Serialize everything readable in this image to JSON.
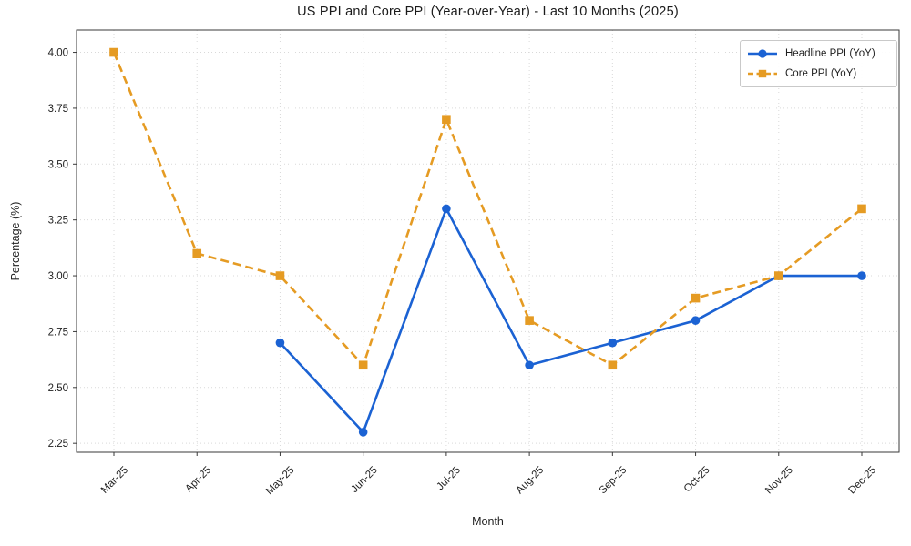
{
  "chart_data": {
    "type": "line",
    "title": "US PPI and Core PPI (Year-over-Year) - Last 10 Months (2025)",
    "xlabel": "Month",
    "ylabel": "Percentage (%)",
    "categories": [
      "Mar-25",
      "Apr-25",
      "May-25",
      "Jun-25",
      "Jul-25",
      "Aug-25",
      "Sep-25",
      "Oct-25",
      "Nov-25",
      "Dec-25"
    ],
    "series": [
      {
        "name": "Headline PPI (YoY)",
        "color": "#1b62d3",
        "line_style": "solid",
        "marker": "circle",
        "values": [
          null,
          null,
          2.7,
          2.3,
          3.3,
          2.6,
          2.7,
          2.8,
          3.0,
          3.0
        ]
      },
      {
        "name": "Core PPI (YoY)",
        "color": "#e59b23",
        "line_style": "dashed",
        "marker": "square",
        "values": [
          4.0,
          3.1,
          3.0,
          2.6,
          3.7,
          2.8,
          2.6,
          2.9,
          3.0,
          3.3
        ]
      }
    ],
    "y_ticks": [
      2.25,
      2.5,
      2.75,
      3.0,
      3.25,
      3.5,
      3.75,
      4.0
    ],
    "y_tick_labels": [
      "2.25",
      "2.50",
      "2.75",
      "3.00",
      "3.25",
      "3.50",
      "3.75",
      "4.00"
    ],
    "ylim": [
      2.21,
      4.1
    ],
    "grid": true,
    "legend_position": "upper right",
    "grid_color": "#d9d9d9",
    "spine_color": "#3a3a3a",
    "text_color": "#1f1f1f"
  }
}
